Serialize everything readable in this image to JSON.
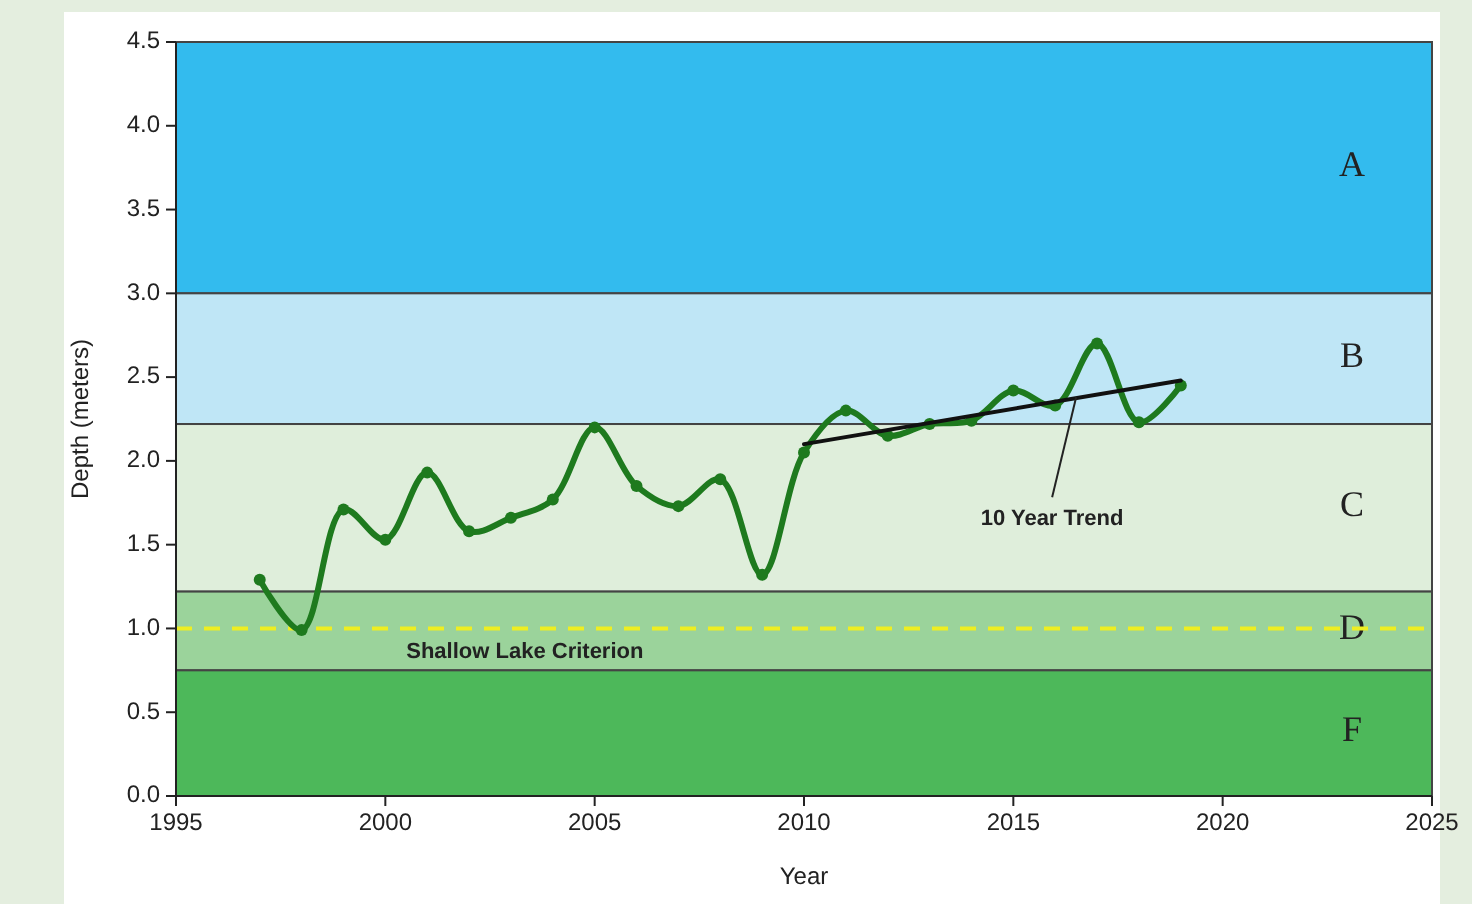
{
  "chart_data": {
    "type": "line",
    "xlabel": "Year",
    "ylabel": "Depth (meters)",
    "xlim": [
      1995,
      2025
    ],
    "xticks": [
      1995,
      2000,
      2005,
      2010,
      2015,
      2020,
      2025
    ],
    "ylim": [
      0,
      4.5
    ],
    "yticks": [
      {
        "value": 0,
        "label": "0.0"
      },
      {
        "value": 0.5,
        "label": "0.5"
      },
      {
        "value": 1,
        "label": "1.0"
      },
      {
        "value": 1.5,
        "label": "1.5"
      },
      {
        "value": 2,
        "label": "2.0"
      },
      {
        "value": 2.5,
        "label": "2.5"
      },
      {
        "value": 3,
        "label": "3.0"
      },
      {
        "value": 3.5,
        "label": "3.5"
      },
      {
        "value": 4,
        "label": "4.0"
      },
      {
        "value": 4.5,
        "label": "4.5"
      }
    ],
    "grid": false,
    "marker": "circle",
    "line_style": "solid",
    "series": [
      {
        "color": "#1e7a1e",
        "x": [
          1997,
          1998,
          1999,
          2000,
          2001,
          2002,
          2003,
          2004,
          2005,
          2006,
          2007,
          2008,
          2009,
          2010,
          2011,
          2012,
          2013,
          2014,
          2015,
          2016,
          2017,
          2018,
          2019
        ],
        "values": [
          1.29,
          0.99,
          1.71,
          1.53,
          1.93,
          1.58,
          1.66,
          1.77,
          2.2,
          1.85,
          1.73,
          1.89,
          1.32,
          2.05,
          2.3,
          2.15,
          2.22,
          2.24,
          2.42,
          2.33,
          2.7,
          2.23,
          2.45
        ]
      },
      {
        "type": "line",
        "color": "#111111",
        "marker": "none",
        "x": [
          2010,
          2019
        ],
        "values": [
          2.1,
          2.48
        ]
      }
    ],
    "bands": [
      {
        "axis": "y",
        "from": 3.0,
        "to": 4.5,
        "label": "A",
        "color": "#33bbee"
      },
      {
        "axis": "y",
        "from": 2.22,
        "to": 3.0,
        "label": "B",
        "color": "#bfe6f6"
      },
      {
        "axis": "y",
        "from": 1.22,
        "to": 2.22,
        "label": "C",
        "color": "#dfeedb"
      },
      {
        "axis": "y",
        "from": 0.75,
        "to": 1.22,
        "label": "D",
        "color": "#9bd39b"
      },
      {
        "axis": "y",
        "from": 0,
        "to": 0.75,
        "label": "F",
        "color": "#4db85a"
      }
    ],
    "ref_lines": [
      {
        "axis": "y",
        "value": 1.0,
        "label": "Shallow Lake Criterion",
        "color": "#eeee22",
        "line_style": "dashed"
      }
    ],
    "annotations": [
      {
        "text": "10 Year Trend",
        "x": 2016.5,
        "y": 2.38
      }
    ]
  }
}
